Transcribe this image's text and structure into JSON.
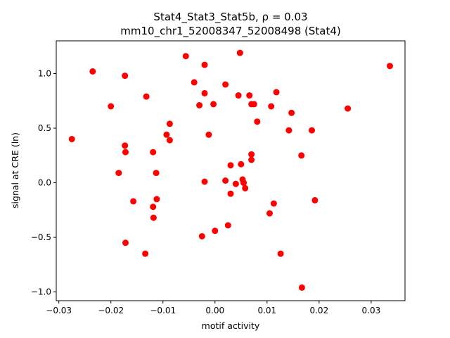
{
  "chart_data": {
    "type": "scatter",
    "title_line1": "Stat4_Stat3_Stat5b, ρ = 0.03",
    "title_line2": "mm10_chr1_52008347_52008498 (Stat4)",
    "xlabel": "motif activity",
    "ylabel": "signal at CRE (ln)",
    "xlim": [
      -0.0305,
      0.0365
    ],
    "ylim": [
      -1.08,
      1.3
    ],
    "x_ticks": [
      {
        "value": -0.03,
        "label": "−0.03"
      },
      {
        "value": -0.02,
        "label": "−0.02"
      },
      {
        "value": -0.01,
        "label": "−0.01"
      },
      {
        "value": 0.0,
        "label": "0.00"
      },
      {
        "value": 0.01,
        "label": "0.01"
      },
      {
        "value": 0.02,
        "label": "0.02"
      },
      {
        "value": 0.03,
        "label": "0.03"
      }
    ],
    "y_ticks": [
      {
        "value": -1.0,
        "label": "−1.0"
      },
      {
        "value": -0.5,
        "label": "−0.5"
      },
      {
        "value": 0.0,
        "label": "0.0"
      },
      {
        "value": 0.5,
        "label": "0.5"
      },
      {
        "value": 1.0,
        "label": "1.0"
      }
    ],
    "grid": false,
    "marker_color": "#ff0000",
    "points": [
      {
        "x": -0.0275,
        "y": 0.4
      },
      {
        "x": -0.0235,
        "y": 1.02
      },
      {
        "x": -0.02,
        "y": 0.7
      },
      {
        "x": -0.0185,
        "y": 0.09
      },
      {
        "x": -0.0173,
        "y": 0.98
      },
      {
        "x": -0.0173,
        "y": 0.34
      },
      {
        "x": -0.0172,
        "y": 0.28
      },
      {
        "x": -0.0172,
        "y": -0.55
      },
      {
        "x": -0.0157,
        "y": -0.17
      },
      {
        "x": -0.0134,
        "y": -0.65
      },
      {
        "x": -0.0132,
        "y": 0.79
      },
      {
        "x": -0.0119,
        "y": 0.28
      },
      {
        "x": -0.0119,
        "y": -0.22
      },
      {
        "x": -0.0118,
        "y": -0.32
      },
      {
        "x": -0.0113,
        "y": 0.09
      },
      {
        "x": -0.0112,
        "y": -0.15
      },
      {
        "x": -0.0093,
        "y": 0.44
      },
      {
        "x": -0.0087,
        "y": 0.54
      },
      {
        "x": -0.0087,
        "y": 0.39
      },
      {
        "x": -0.0056,
        "y": 1.16
      },
      {
        "x": -0.004,
        "y": 0.92
      },
      {
        "x": -0.003,
        "y": 0.71
      },
      {
        "x": -0.0025,
        "y": -0.49
      },
      {
        "x": -0.002,
        "y": 1.08
      },
      {
        "x": -0.002,
        "y": 0.82
      },
      {
        "x": -0.002,
        "y": 0.01
      },
      {
        "x": -0.0012,
        "y": 0.44
      },
      {
        "x": -0.0003,
        "y": 0.72
      },
      {
        "x": 0.0,
        "y": -0.44
      },
      {
        "x": 0.002,
        "y": 0.9
      },
      {
        "x": 0.002,
        "y": 0.02
      },
      {
        "x": 0.0025,
        "y": -0.39
      },
      {
        "x": 0.003,
        "y": 0.16
      },
      {
        "x": 0.003,
        "y": -0.1
      },
      {
        "x": 0.004,
        "y": -0.01
      },
      {
        "x": 0.0045,
        "y": 0.8
      },
      {
        "x": 0.0048,
        "y": 1.19
      },
      {
        "x": 0.005,
        "y": 0.17
      },
      {
        "x": 0.0053,
        "y": 0.03
      },
      {
        "x": 0.0055,
        "y": 0.0
      },
      {
        "x": 0.0058,
        "y": -0.05
      },
      {
        "x": 0.0066,
        "y": 0.8
      },
      {
        "x": 0.007,
        "y": 0.72
      },
      {
        "x": 0.007,
        "y": 0.26
      },
      {
        "x": 0.007,
        "y": 0.21
      },
      {
        "x": 0.0075,
        "y": 0.72
      },
      {
        "x": 0.0081,
        "y": 0.56
      },
      {
        "x": 0.0105,
        "y": -0.28
      },
      {
        "x": 0.0108,
        "y": 0.7
      },
      {
        "x": 0.0113,
        "y": -0.19
      },
      {
        "x": 0.0118,
        "y": 0.83
      },
      {
        "x": 0.0126,
        "y": -0.65
      },
      {
        "x": 0.0142,
        "y": 0.48
      },
      {
        "x": 0.0147,
        "y": 0.64
      },
      {
        "x": 0.0166,
        "y": 0.25
      },
      {
        "x": 0.0167,
        "y": -0.96
      },
      {
        "x": 0.0186,
        "y": 0.48
      },
      {
        "x": 0.0192,
        "y": -0.16
      },
      {
        "x": 0.0255,
        "y": 0.68
      },
      {
        "x": 0.0336,
        "y": 1.07
      }
    ]
  }
}
